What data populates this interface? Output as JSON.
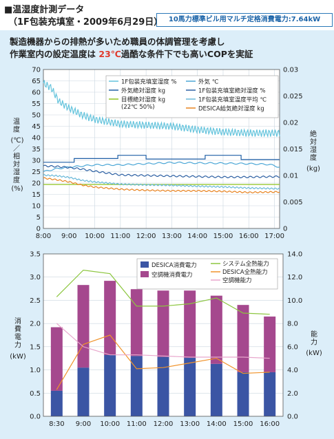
{
  "header": {
    "title": "■温湿度計測データ",
    "subtitle": "（1F包装充填室・2009年6月29日）",
    "badge": "10馬力標準ビル用マルチ定格消費電力:7.64kW"
  },
  "panel": {
    "line1": "製造機器からの排熱が多いため職員の体調管理を考慮し",
    "line2_pre": "作業室内の設定温度は",
    "line2_hl": "23℃",
    "line2_post": "過酷な条件下でも高いCOPを実証"
  },
  "colors": {
    "panel_bg": "#dceef9",
    "humidity": "#63c3dc",
    "outdoor_abs": "#1f5fa6",
    "target_abs": "#8fc31f",
    "outdoor_temp": "#4aa6d6",
    "room_abs": "#2b5fa2",
    "room_temp": "#68b8d8",
    "desica_abs": "#e8821e",
    "desica_power": "#3b55a4",
    "ac_power": "#a5488e",
    "system_cap": "#8cc63f",
    "desica_cap": "#f0932b",
    "ac_cap": "#e8a6cc"
  },
  "chart_data": [
    {
      "type": "line",
      "title": "",
      "y_left_label": "温度(℃)/相対湿度(%)",
      "y_right_label": "絶対湿度(kg)",
      "ylim_left": [
        0,
        70
      ],
      "ylim_right": [
        0,
        0.03
      ],
      "y_left_ticks": [
        "0",
        "5",
        "10",
        "15",
        "20",
        "25",
        "30",
        "35",
        "40",
        "45",
        "50",
        "55",
        "60",
        "65",
        "70"
      ],
      "y_right_ticks": [
        "0",
        "0.005",
        "0.01",
        "0.015",
        "0.02",
        "0.025",
        "0.03"
      ],
      "x_ticks": [
        "8:00",
        "9:00",
        "10:00",
        "11:00",
        "12:00",
        "13:00",
        "14:00",
        "15:00",
        "16:00",
        "17:00"
      ],
      "x_hours": [
        8,
        17.2
      ],
      "grid": true,
      "legend_position": "top",
      "series": [
        {
          "key": "room_rh",
          "name": "1F包装充填室湿度 %",
          "axis": "left",
          "color_key": "humidity",
          "noise": 1.6,
          "period": 0.12,
          "points": [
            [
              8.0,
              64
            ],
            [
              8.3,
              62
            ],
            [
              8.6,
              56
            ],
            [
              9.0,
              53
            ],
            [
              9.5,
              50
            ],
            [
              10.0,
              48
            ],
            [
              10.5,
              47
            ],
            [
              11.0,
              46
            ],
            [
              12.0,
              45.5
            ],
            [
              13.0,
              45
            ],
            [
              14.0,
              43.5
            ],
            [
              15.0,
              42.5
            ],
            [
              16.0,
              42
            ],
            [
              16.5,
              42
            ],
            [
              17.2,
              42
            ]
          ]
        },
        {
          "key": "outdoor_temp",
          "name": "外気 ℃",
          "axis": "left",
          "color_key": "outdoor_temp",
          "noise": 0.3,
          "period": 0.4,
          "points": [
            [
              8.0,
              25
            ],
            [
              8.5,
              26.3
            ],
            [
              9.0,
              27
            ],
            [
              10.0,
              28
            ],
            [
              11.0,
              28
            ],
            [
              12.0,
              28.5
            ],
            [
              13.0,
              29
            ],
            [
              14.0,
              28.8
            ],
            [
              15.0,
              28.7
            ],
            [
              16.0,
              28.5
            ],
            [
              16.8,
              28.2
            ],
            [
              17.2,
              27
            ]
          ]
        },
        {
          "key": "outdoor_abs",
          "name": "外気絶対湿度 kg",
          "axis": "right",
          "color_key": "outdoor_abs",
          "noise": 0,
          "step": true,
          "points": [
            [
              8.0,
              0.0125
            ],
            [
              9.2,
              0.0125
            ],
            [
              9.2,
              0.0132
            ],
            [
              10.9,
              0.0132
            ],
            [
              10.9,
              0.0138
            ],
            [
              12.0,
              0.0138
            ],
            [
              12.0,
              0.0131
            ],
            [
              14.3,
              0.0131
            ],
            [
              14.3,
              0.0138
            ],
            [
              15.7,
              0.0138
            ],
            [
              15.7,
              0.013
            ],
            [
              17.2,
              0.013
            ]
          ]
        },
        {
          "key": "room_abs",
          "name": "1F包装充填室絶対湿度 %",
          "axis": "right",
          "color_key": "room_abs",
          "noise": 0.00015,
          "period": 0.25,
          "points": [
            [
              8.0,
              0.0118
            ],
            [
              8.5,
              0.0117
            ],
            [
              9.0,
              0.0115
            ],
            [
              9.5,
              0.0112
            ],
            [
              10.0,
              0.0108
            ],
            [
              11.0,
              0.0101
            ],
            [
              12.0,
              0.01
            ],
            [
              13.0,
              0.0099
            ],
            [
              14.0,
              0.0098
            ],
            [
              15.0,
              0.0097
            ],
            [
              16.0,
              0.0097
            ],
            [
              17.2,
              0.0098
            ]
          ]
        },
        {
          "key": "target_abs",
          "name": "目標絶対湿度 kg (22℃ 50%)",
          "axis": "right",
          "color_key": "target_abs",
          "noise": 0,
          "points": [
            [
              8.0,
              0.0083
            ],
            [
              17.2,
              0.0083
            ]
          ]
        },
        {
          "key": "room_temp",
          "name": "1F包装充填室温度平均 ℃",
          "axis": "left",
          "color_key": "room_temp",
          "noise": 0.3,
          "period": 0.15,
          "points": [
            [
              8.0,
              23.5
            ],
            [
              8.5,
              23.2
            ],
            [
              9.0,
              22.5
            ],
            [
              9.5,
              21.2
            ],
            [
              10.0,
              20.5
            ],
            [
              11.0,
              19.5
            ],
            [
              12.0,
              19.2
            ],
            [
              13.0,
              19.0
            ],
            [
              14.0,
              18.6
            ],
            [
              15.0,
              18.3
            ],
            [
              16.0,
              17.8
            ],
            [
              17.2,
              17.5
            ]
          ]
        },
        {
          "key": "desica_abs",
          "name": "DESICA給気絶対湿度 kg",
          "axis": "right",
          "color_key": "desica_abs",
          "noise": 0.00012,
          "period": 0.2,
          "points": [
            [
              8.0,
              0.0095
            ],
            [
              8.5,
              0.0092
            ],
            [
              9.0,
              0.0088
            ],
            [
              9.5,
              0.0082
            ],
            [
              10.0,
              0.0078
            ],
            [
              11.0,
              0.0074
            ],
            [
              12.0,
              0.0072
            ],
            [
              13.0,
              0.0071
            ],
            [
              14.0,
              0.0071
            ],
            [
              15.0,
              0.007
            ],
            [
              16.0,
              0.0068
            ],
            [
              17.2,
              0.0069
            ]
          ]
        }
      ]
    },
    {
      "type": "bar",
      "title": "",
      "y_left_label": "消費電力(kW)",
      "y_right_label": "能力(kW)",
      "ylim_left": [
        0,
        3.5
      ],
      "ylim_right": [
        0,
        14
      ],
      "y_left_ticks": [
        "0.0",
        "0.5",
        "1.0",
        "1.5",
        "2.0",
        "2.5",
        "3.0",
        "3.5"
      ],
      "y_right_ticks": [
        "0.0",
        "2.0",
        "4.0",
        "6.0",
        "8.0",
        "10.0",
        "12.0",
        "14.0"
      ],
      "categories": [
        "8:30",
        "9:00",
        "10:00",
        "11:00",
        "12:00",
        "13:00",
        "14:00",
        "15:00",
        "16:00"
      ],
      "grid": true,
      "legend_position": "top",
      "stacked_bars": [
        {
          "name": "DESICA消費電力",
          "color_key": "desica_power",
          "values": [
            0.55,
            1.05,
            1.32,
            1.3,
            1.28,
            1.26,
            1.13,
            0.95,
            0.95
          ]
        },
        {
          "name": "空調機消費電力",
          "color_key": "ac_power",
          "values": [
            1.37,
            1.78,
            1.6,
            1.44,
            1.43,
            1.45,
            1.47,
            1.45,
            1.2
          ]
        }
      ],
      "lines": [
        {
          "name": "システム全熱能力",
          "color_key": "system_cap",
          "values": [
            10.3,
            12.6,
            12.3,
            9.5,
            9.5,
            9.7,
            10.2,
            8.9,
            8.8
          ]
        },
        {
          "name": "DESICA全熱能力",
          "color_key": "desica_cap",
          "values": [
            2.3,
            6.2,
            7.0,
            4.1,
            4.2,
            4.6,
            5.0,
            3.7,
            3.8
          ]
        },
        {
          "name": "空調機能力",
          "color_key": "ac_cap",
          "values": [
            8.0,
            6.0,
            5.3,
            5.3,
            5.2,
            5.1,
            5.1,
            5.1,
            5.0
          ]
        }
      ]
    }
  ]
}
